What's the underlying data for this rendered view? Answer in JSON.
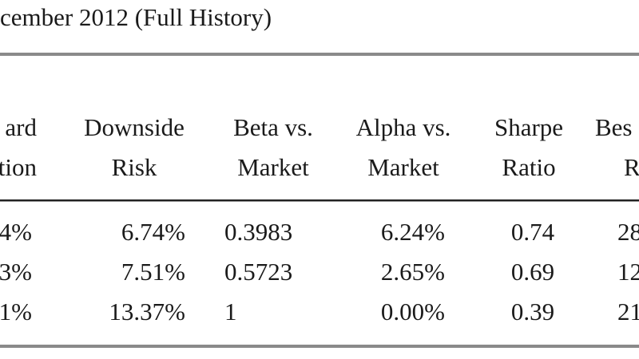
{
  "title": "cember 2012 (Full History)",
  "table": {
    "header": [
      [
        "ard",
        "tion"
      ],
      [
        "Downside",
        "Risk"
      ],
      [
        "Beta vs.",
        "Market"
      ],
      [
        "Alpha vs.",
        "Market"
      ],
      [
        "Sharpe",
        "Ratio"
      ],
      [
        "Bes",
        "R"
      ]
    ],
    "rows": [
      [
        "4%",
        "6.74%",
        "0.3983",
        "6.24%",
        "0.74",
        "28"
      ],
      [
        "3%",
        "7.51%",
        "0.5723",
        "2.65%",
        "0.69",
        "12"
      ],
      [
        "1%",
        "13.37%",
        "1",
        "0.00%",
        "0.39",
        "21"
      ]
    ]
  }
}
